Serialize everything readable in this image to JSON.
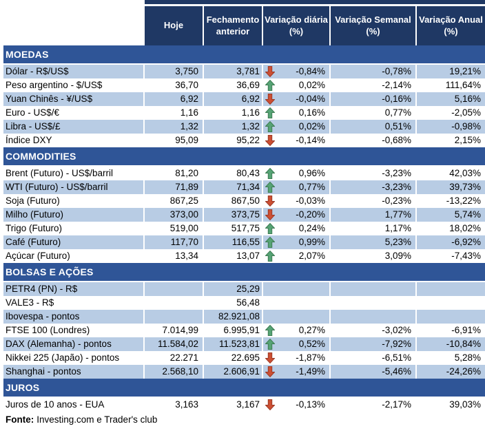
{
  "header": {
    "columns": [
      "Hoje",
      "Fechamento anterior",
      "Variação diária (%)",
      "Variação Semanal (%)",
      "Variação Anual (%)"
    ]
  },
  "sections": [
    {
      "title": "MOEDAS",
      "shade": "even",
      "rows": [
        {
          "label": "Dólar - R$/US$",
          "hoje": "3,750",
          "fechamento": "3,781",
          "arrow": "down",
          "diaria": "-0,84%",
          "semanal": "-0,78%",
          "anual": "19,21%"
        },
        {
          "label": "Peso argentino - $/US$",
          "hoje": "36,70",
          "fechamento": "36,69",
          "arrow": "up",
          "diaria": "0,02%",
          "semanal": "-2,14%",
          "anual": "111,64%"
        },
        {
          "label": "Yuan Chinês - ¥/US$",
          "hoje": "6,92",
          "fechamento": "6,92",
          "arrow": "down",
          "diaria": "-0,04%",
          "semanal": "-0,16%",
          "anual": "5,16%"
        },
        {
          "label": "Euro - US$/€",
          "hoje": "1,16",
          "fechamento": "1,16",
          "arrow": "up",
          "diaria": "0,16%",
          "semanal": "0,77%",
          "anual": "-2,05%"
        },
        {
          "label": "Libra - US$/£",
          "hoje": "1,32",
          "fechamento": "1,32",
          "arrow": "up",
          "diaria": "0,02%",
          "semanal": "0,51%",
          "anual": "-0,98%"
        },
        {
          "label": "Índice DXY",
          "hoje": "95,09",
          "fechamento": "95,22",
          "arrow": "down",
          "diaria": "-0,14%",
          "semanal": "-0,68%",
          "anual": "2,15%"
        }
      ]
    },
    {
      "title": "COMMODITIES",
      "shade": "odd",
      "rows": [
        {
          "label": "Brent (Futuro) - US$/barril",
          "hoje": "81,20",
          "fechamento": "80,43",
          "arrow": "up",
          "diaria": "0,96%",
          "semanal": "-3,23%",
          "anual": "42,03%"
        },
        {
          "label": "WTI (Futuro) - US$/barril",
          "hoje": "71,89",
          "fechamento": "71,34",
          "arrow": "up",
          "diaria": "0,77%",
          "semanal": "-3,23%",
          "anual": "39,73%"
        },
        {
          "label": "Soja (Futuro)",
          "hoje": "867,25",
          "fechamento": "867,50",
          "arrow": "down",
          "diaria": "-0,03%",
          "semanal": "-0,23%",
          "anual": "-13,22%"
        },
        {
          "label": "Milho (Futuro)",
          "hoje": "373,00",
          "fechamento": "373,75",
          "arrow": "down",
          "diaria": "-0,20%",
          "semanal": "1,77%",
          "anual": "5,74%"
        },
        {
          "label": "Trigo (Futuro)",
          "hoje": "519,00",
          "fechamento": "517,75",
          "arrow": "up",
          "diaria": "0,24%",
          "semanal": "1,17%",
          "anual": "18,02%"
        },
        {
          "label": "Café (Futuro)",
          "hoje": "117,70",
          "fechamento": "116,55",
          "arrow": "up",
          "diaria": "0,99%",
          "semanal": "5,23%",
          "anual": "-6,92%"
        },
        {
          "label": "Açúcar (Futuro)",
          "hoje": "13,34",
          "fechamento": "13,07",
          "arrow": "up",
          "diaria": "2,07%",
          "semanal": "3,09%",
          "anual": "-7,43%"
        }
      ]
    },
    {
      "title": "BOLSAS E AÇÕES",
      "shade": "even",
      "rows": [
        {
          "label": "PETR4 (PN) - R$",
          "hoje": "",
          "fechamento": "25,29",
          "arrow": null,
          "diaria": "",
          "semanal": "",
          "anual": ""
        },
        {
          "label": "VALE3 - R$",
          "hoje": "",
          "fechamento": "56,48",
          "arrow": null,
          "diaria": "",
          "semanal": "",
          "anual": ""
        },
        {
          "label": "Ibovespa - pontos",
          "hoje": "",
          "fechamento": "82.921,08",
          "arrow": null,
          "diaria": "",
          "semanal": "",
          "anual": ""
        },
        {
          "label": "FTSE 100 (Londres)",
          "hoje": "7.014,99",
          "fechamento": "6.995,91",
          "arrow": "up",
          "diaria": "0,27%",
          "semanal": "-3,02%",
          "anual": "-6,91%"
        },
        {
          "label": "DAX (Alemanha) - pontos",
          "hoje": "11.584,02",
          "fechamento": "11.523,81",
          "arrow": "up",
          "diaria": "0,52%",
          "semanal": "-7,92%",
          "anual": "-10,84%"
        },
        {
          "label": "Nikkei 225 (Japão) - pontos",
          "hoje": "22.271",
          "fechamento": "22.695",
          "arrow": "down",
          "diaria": "-1,87%",
          "semanal": "-6,51%",
          "anual": "5,28%"
        },
        {
          "label": "Shanghai - pontos",
          "hoje": "2.568,10",
          "fechamento": "2.606,91",
          "arrow": "down",
          "diaria": "-1,49%",
          "semanal": "-5,46%",
          "anual": "-24,26%"
        }
      ]
    },
    {
      "title": "JUROS",
      "shade": "odd",
      "rows": [
        {
          "label": "Juros de 10 anos - EUA",
          "hoje": "3,163",
          "fechamento": "3,167",
          "arrow": "down",
          "diaria": "-0,13%",
          "semanal": "-2,17%",
          "anual": "39,03%"
        }
      ]
    }
  ],
  "footer": {
    "source_label": "Fonte:",
    "source_text": "Investing.com e Trader's club"
  },
  "colors": {
    "header_bg": "#1F3864",
    "band_bg": "#2F5597",
    "row_shade": "#B8CCE4",
    "header_text": "#FFFFFF",
    "arrow_up": "#56A375",
    "arrow_up_border": "#3E7C53",
    "arrow_down": "#CC4F33",
    "arrow_down_border": "#9C3A26"
  }
}
